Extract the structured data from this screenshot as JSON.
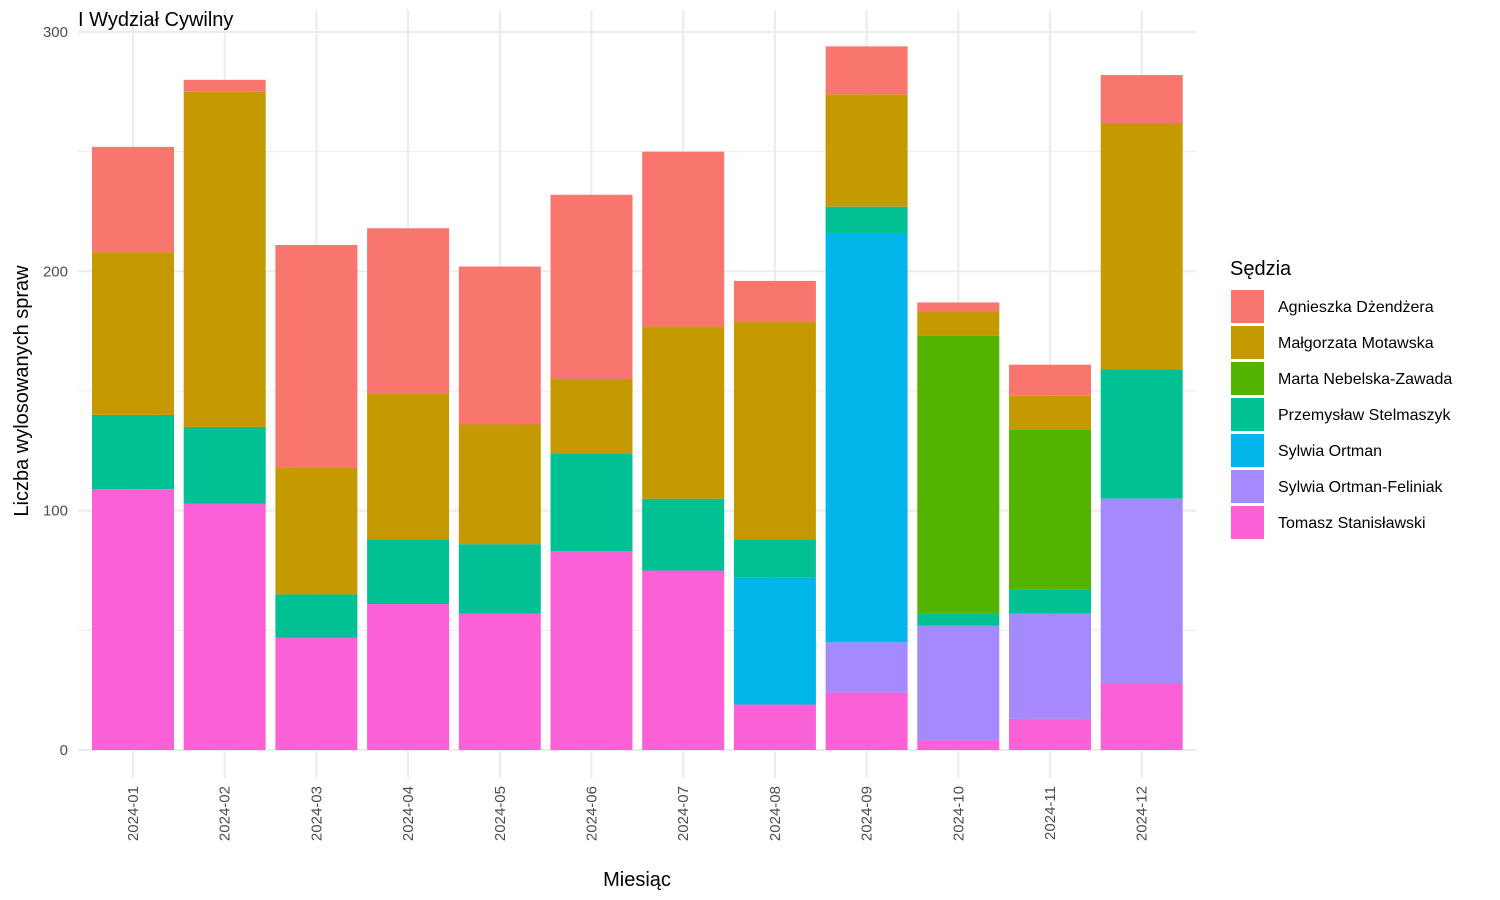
{
  "chart_data": {
    "type": "bar",
    "stacked": true,
    "title": "I Wydział Cywilny",
    "xlabel": "Miesiąc",
    "ylabel": "Liczba wylosowanych spraw",
    "ylim": [
      0,
      300
    ],
    "yticks": [
      0,
      100,
      200,
      300
    ],
    "grid": true,
    "legend_position": "right",
    "legend_title": "Sędzia",
    "categories": [
      "2024-01",
      "2024-02",
      "2024-03",
      "2024-04",
      "2024-05",
      "2024-06",
      "2024-07",
      "2024-08",
      "2024-09",
      "2024-10",
      "2024-11",
      "2024-12"
    ],
    "series": [
      {
        "name": "Agnieszka Dżendżera",
        "color": "#F8766D",
        "values": [
          44,
          5,
          93,
          69,
          66,
          77,
          73,
          17,
          20,
          4,
          13,
          20
        ]
      },
      {
        "name": "Małgorzata Motawska",
        "color": "#C49A00",
        "values": [
          68,
          140,
          53,
          61,
          50,
          31,
          72,
          91,
          47,
          10,
          14,
          103
        ]
      },
      {
        "name": "Marta Nebelska-Zawada",
        "color": "#53B400",
        "values": [
          0,
          0,
          0,
          0,
          0,
          0,
          0,
          0,
          0,
          116,
          67,
          0
        ]
      },
      {
        "name": "Przemysław Stelmaszyk",
        "color": "#00C094",
        "values": [
          31,
          32,
          18,
          27,
          29,
          41,
          30,
          16,
          11,
          5,
          10,
          54
        ]
      },
      {
        "name": "Sylwia Ortman",
        "color": "#00B6EB",
        "values": [
          0,
          0,
          0,
          0,
          0,
          0,
          0,
          53,
          171,
          0,
          0,
          0
        ]
      },
      {
        "name": "Sylwia Ortman-Feliniak",
        "color": "#A58AFF",
        "values": [
          0,
          0,
          0,
          0,
          0,
          0,
          0,
          0,
          21,
          48,
          44,
          77
        ]
      },
      {
        "name": "Tomasz Stanisławski",
        "color": "#FB61D7",
        "values": [
          109,
          103,
          47,
          61,
          57,
          83,
          75,
          19,
          24,
          4,
          13,
          28
        ]
      }
    ]
  }
}
